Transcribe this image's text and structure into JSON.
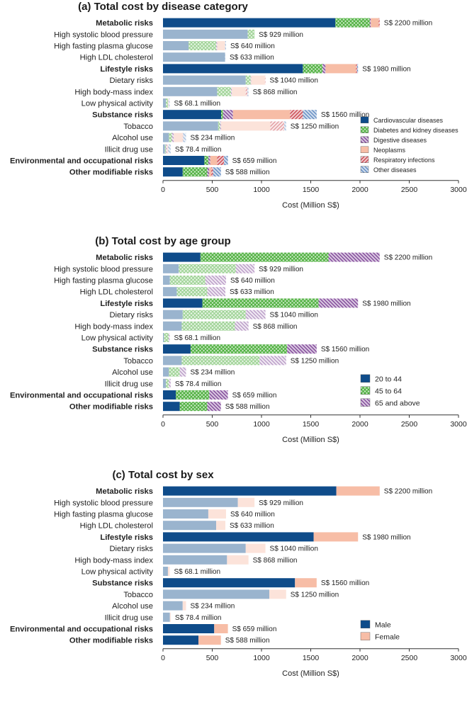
{
  "categories": [
    "Metabolic risks",
    "High systolic blood pressure",
    "High fasting plasma glucose",
    "High LDL cholesterol",
    "Lifestyle risks",
    "Dietary risks",
    "High body-mass index",
    "Low physical activity",
    "Substance risks",
    "Tobacco",
    "Alcohol use",
    "Illicit drug use",
    "Environmental and occupational risks",
    "Other modifiable risks"
  ],
  "bold_categories": [
    true,
    false,
    false,
    false,
    true,
    false,
    false,
    false,
    true,
    false,
    false,
    false,
    true,
    true
  ],
  "total_labels": [
    "S$ 2200 million",
    "S$ 929 million",
    "S$ 640 million",
    "S$ 633 million",
    "S$ 1980 million",
    "S$ 1040 million",
    "S$ 868 million",
    "S$ 68.1 million",
    "S$ 1560 million",
    "S$ 1250 million",
    "S$ 234 million",
    "S$ 78.4 million",
    "S$ 659 million",
    "S$ 588 million"
  ],
  "colors": {
    "dark_blue": "#0f4c8a",
    "light_blue": "#9db1d1",
    "green": "#4caf3c",
    "purple": "#7b3f94",
    "salmon": "#f7bda6",
    "red": "#c9404a",
    "steel_blue": "#5b87c0"
  },
  "chart_data": [
    {
      "type": "bar",
      "orientation": "horizontal",
      "stacked": true,
      "title": "(a) Total cost by disease category",
      "xlabel": "Cost (Million S$)",
      "xlim": [
        0,
        3000
      ],
      "xticks": [
        0,
        500,
        1000,
        1500,
        2000,
        2500,
        3000
      ],
      "legend_position": "right",
      "series": [
        {
          "name": "Cardiovascular diseases",
          "color": "#0f4c8a",
          "pattern": "solid",
          "values": [
            1750,
            860,
            260,
            630,
            1420,
            840,
            550,
            30,
            590,
            560,
            60,
            20,
            420,
            200
          ]
        },
        {
          "name": "Diabetes and kidney diseases",
          "color": "#4caf3c",
          "pattern": "cross",
          "values": [
            350,
            69,
            280,
            0,
            200,
            50,
            140,
            20,
            20,
            20,
            30,
            10,
            40,
            250
          ]
        },
        {
          "name": "Digestive diseases",
          "color": "#7b3f94",
          "pattern": "back",
          "values": [
            10,
            0,
            10,
            0,
            30,
            5,
            10,
            2,
            100,
            10,
            20,
            10,
            20,
            20
          ]
        },
        {
          "name": "Neoplasms",
          "color": "#f7bda6",
          "pattern": "solid",
          "values": [
            80,
            0,
            80,
            0,
            310,
            140,
            140,
            5,
            580,
            500,
            90,
            10,
            70,
            20
          ]
        },
        {
          "name": "Respiratory infections",
          "color": "#c9404a",
          "pattern": "fwd",
          "values": [
            10,
            0,
            0,
            0,
            10,
            5,
            18,
            1,
            130,
            140,
            4,
            3,
            70,
            18
          ]
        },
        {
          "name": "Other diseases",
          "color": "#5b87c0",
          "pattern": "back",
          "values": [
            0,
            0,
            10,
            3,
            10,
            0,
            10,
            10,
            140,
            20,
            30,
            25,
            39,
            80
          ]
        }
      ]
    },
    {
      "type": "bar",
      "orientation": "horizontal",
      "stacked": true,
      "title": "(b) Total cost by age group",
      "xlabel": "Cost (Million S$)",
      "xlim": [
        0,
        3000
      ],
      "xticks": [
        0,
        500,
        1000,
        1500,
        2000,
        2500,
        3000
      ],
      "legend_position": "right",
      "series": [
        {
          "name": "20 to 44",
          "color": "#0f4c8a",
          "pattern": "solid",
          "values": [
            380,
            160,
            70,
            140,
            400,
            200,
            190,
            10,
            280,
            190,
            60,
            30,
            130,
            170
          ]
        },
        {
          "name": "45 to 64",
          "color": "#4caf3c",
          "pattern": "cross",
          "values": [
            1300,
            580,
            360,
            310,
            1180,
            640,
            540,
            48,
            980,
            790,
            110,
            30,
            340,
            280
          ]
        },
        {
          "name": "65 and above",
          "color": "#7b3f94",
          "pattern": "back",
          "values": [
            520,
            189,
            210,
            183,
            400,
            200,
            138,
            10,
            300,
            270,
            64,
            18,
            189,
            138
          ]
        }
      ]
    },
    {
      "type": "bar",
      "orientation": "horizontal",
      "stacked": true,
      "title": "(c) Total cost by sex",
      "xlabel": "Cost (Million S$)",
      "xlim": [
        0,
        3000
      ],
      "xticks": [
        0,
        500,
        1000,
        1500,
        2000,
        2500,
        3000
      ],
      "legend_position": "right",
      "series": [
        {
          "name": "Male",
          "color": "#0f4c8a",
          "pattern": "solid",
          "values": [
            1760,
            760,
            460,
            540,
            1530,
            840,
            650,
            50,
            1340,
            1080,
            200,
            70,
            520,
            360
          ]
        },
        {
          "name": "Female",
          "color": "#f7bda6",
          "pattern": "solid",
          "values": [
            440,
            169,
            180,
            93,
            450,
            200,
            218,
            18.1,
            220,
            170,
            34,
            8.4,
            139,
            228
          ]
        }
      ]
    }
  ]
}
